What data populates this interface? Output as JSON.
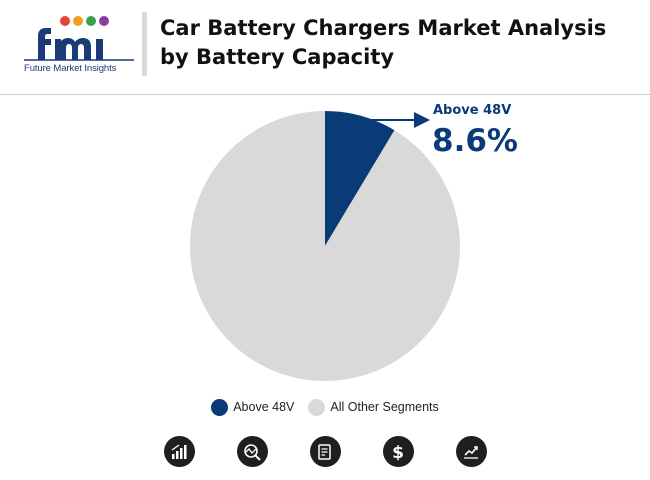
{
  "brand": {
    "name": "fmi",
    "tagline": "Future Market Insights",
    "colors": {
      "navy": "#1a3a78",
      "red": "#e8413c",
      "orange": "#f39c24",
      "green": "#3aa14a",
      "purple": "#8e3b9e"
    }
  },
  "header": {
    "title": "Car Battery Chargers Market Analysis by Battery Capacity"
  },
  "chart_data": {
    "type": "pie",
    "slices": [
      {
        "label": "Above 48V",
        "value": 8.6,
        "color": "#0b3a78"
      },
      {
        "label": "All Other Segments",
        "value": 91.4,
        "color": "#d9d9d9"
      }
    ],
    "callout": {
      "label": "Above 48V",
      "value_text": "8.6%"
    },
    "legend": {
      "placement": "bottom",
      "entries": [
        {
          "label": "Above 48V",
          "color": "#0b3a78"
        },
        {
          "label": "All Other Segments",
          "color": "#d9d9d9"
        }
      ]
    }
  },
  "footer_icons": [
    "bar-growth-icon",
    "magnify-chart-icon",
    "report-document-icon",
    "dollar-icon",
    "line-trend-icon"
  ]
}
